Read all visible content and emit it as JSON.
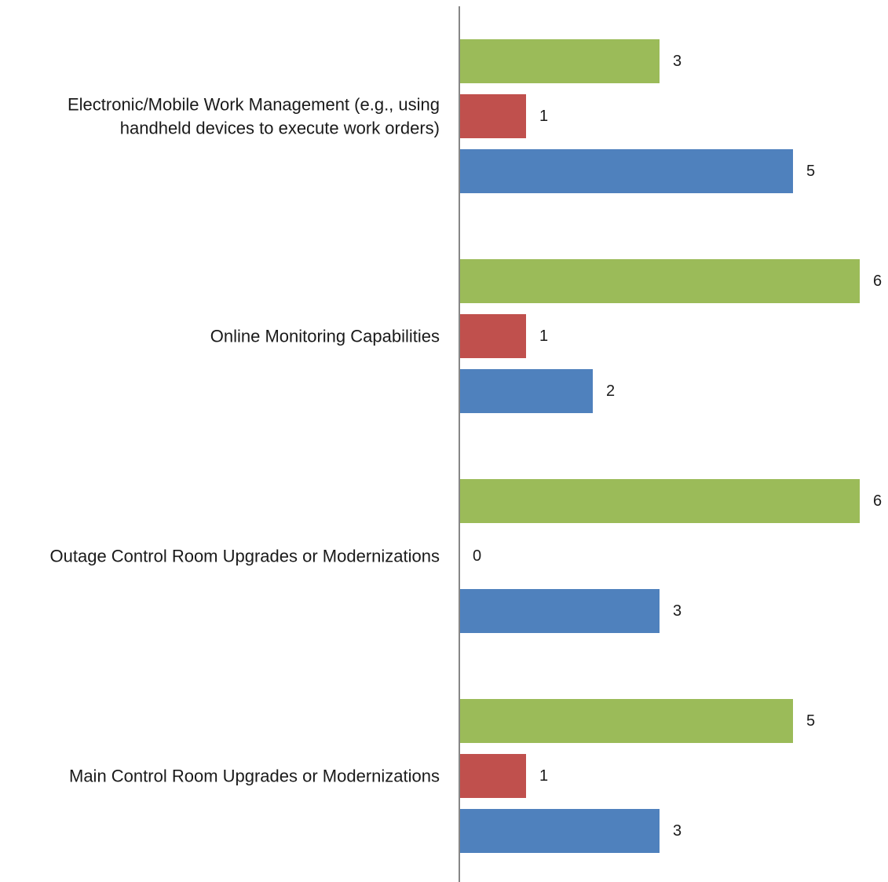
{
  "chart_data": {
    "type": "bar",
    "orientation": "horizontal",
    "title": "",
    "xlabel": "",
    "ylabel": "",
    "xlim": [
      0,
      6
    ],
    "grid": false,
    "legend": "none",
    "categories": [
      [
        "Electronic/Mobile Work Management (e.g., using",
        "handheld devices to execute work orders)"
      ],
      [
        "Online Monitoring Capabilities"
      ],
      [
        "Outage Control Room Upgrades or Modernizations"
      ],
      [
        "Main Control Room Upgrades or Modernizations"
      ]
    ],
    "series": [
      {
        "color": "#9bbb59",
        "values": [
          3,
          6,
          6,
          5
        ]
      },
      {
        "color": "#c0504d",
        "values": [
          1,
          1,
          0,
          1
        ]
      },
      {
        "color": "#4f81bd",
        "values": [
          5,
          2,
          3,
          3
        ]
      }
    ],
    "axis_color": "#868686"
  }
}
